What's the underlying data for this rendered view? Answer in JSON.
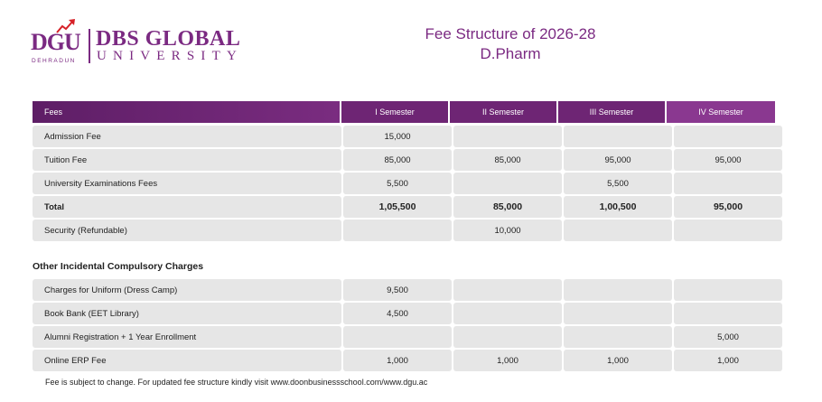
{
  "logo": {
    "dgu": "DGU",
    "dehradun": "DEHRADUN",
    "brand_line1": "DBS GLOBAL",
    "brand_line2": "UNIVERSITY"
  },
  "title": {
    "line1": "Fee Structure of 2026-28",
    "line2": "D.Pharm"
  },
  "fee_table": {
    "headers": [
      "Fees",
      "I Semester",
      "II Semester",
      "III Semester",
      "IV Semester"
    ],
    "rows": [
      [
        "Admission Fee",
        "15,000",
        "",
        "",
        ""
      ],
      [
        "Tuition Fee",
        "85,000",
        "85,000",
        "95,000",
        "95,000"
      ],
      [
        "University Examinations Fees",
        "5,500",
        "",
        "5,500",
        ""
      ],
      [
        "Total",
        "1,05,500",
        "85,000",
        "1,00,500",
        "95,000"
      ],
      [
        "Security (Refundable)",
        "",
        "10,000",
        "",
        ""
      ]
    ]
  },
  "other_charges": {
    "title": "Other Incidental Compulsory Charges",
    "rows": [
      [
        "Charges for Uniform (Dress Camp)",
        "9,500",
        "",
        "",
        ""
      ],
      [
        "Book Bank (EET Library)",
        "4,500",
        "",
        "",
        ""
      ],
      [
        "Alumni Registration + 1 Year Enrollment",
        "",
        "",
        "",
        "5,000"
      ],
      [
        "Online ERP Fee",
        "1,000",
        "1,000",
        "1,000",
        "1,000"
      ]
    ]
  },
  "footnote": "Fee is subject to change. For updated fee structure kindly visit www.doonbusinessschool.com/www.dgu.ac",
  "colors": {
    "brand_purple": "#7b2a82",
    "header_purple": "#6e2574",
    "cell_gray": "#e6e6e6"
  }
}
